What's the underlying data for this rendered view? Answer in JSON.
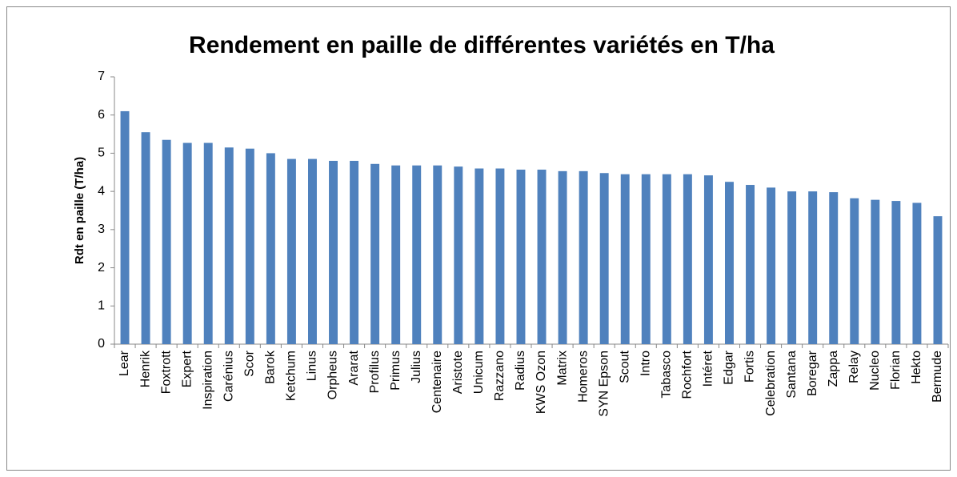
{
  "chart_data": {
    "type": "bar",
    "title": "Rendement en paille de différentes variétés en T/ha",
    "y_label": "Rdt en paille  (T/ha)",
    "categories": [
      "Lear",
      "Henrik",
      "Foxtrott",
      "Expert",
      "Inspiration",
      "Carénius",
      "Scor",
      "Barok",
      "Ketchum",
      "Linus",
      "Orpheus",
      "Ararat",
      "Profilus",
      "Primus",
      "Julius",
      "Centenaire",
      "Aristote",
      "Unicum",
      "Razzano",
      "Radius",
      "KWS Ozon",
      "Matrix",
      "Homeros",
      "SYN Epson",
      "Scout",
      "Intro",
      "Tabasco",
      "Rochfort",
      "Intéret",
      "Edgar",
      "Fortis",
      "Celebration",
      "Santana",
      "Boregar",
      "Zappa",
      "Relay",
      "Nucleo",
      "Florian",
      "Hekto",
      "Bermude"
    ],
    "values": [
      6.1,
      5.55,
      5.35,
      5.27,
      5.27,
      5.15,
      5.12,
      5.0,
      4.85,
      4.85,
      4.8,
      4.8,
      4.72,
      4.68,
      4.68,
      4.68,
      4.65,
      4.6,
      4.6,
      4.57,
      4.57,
      4.53,
      4.53,
      4.48,
      4.45,
      4.45,
      4.45,
      4.45,
      4.42,
      4.25,
      4.17,
      4.1,
      4.0,
      4.0,
      3.98,
      3.82,
      3.78,
      3.75,
      3.7,
      3.35
    ],
    "color": "#4f81bd",
    "ylim": [
      0,
      7
    ],
    "yticks": [
      0,
      1,
      2,
      3,
      4,
      5,
      6,
      7
    ],
    "grid": false
  }
}
